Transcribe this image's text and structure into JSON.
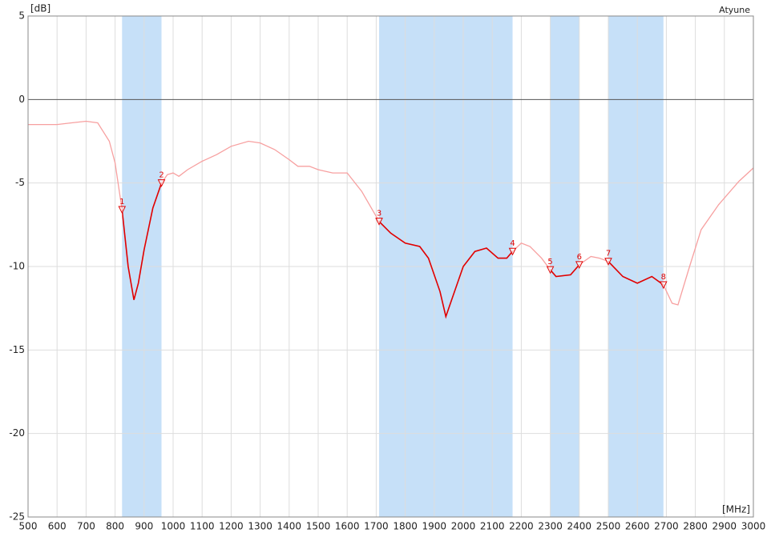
{
  "chart_data": {
    "type": "line",
    "y_unit": "[dB]",
    "x_unit": "[MHz]",
    "name_label": "Atyune",
    "xlim": [
      500,
      3000
    ],
    "ylim": [
      -25,
      5
    ],
    "xticks": [
      500,
      600,
      700,
      800,
      900,
      1000,
      1100,
      1200,
      1300,
      1400,
      1500,
      1600,
      1700,
      1800,
      1900,
      2000,
      2100,
      2200,
      2300,
      2400,
      2500,
      2600,
      2700,
      2800,
      2900,
      3000
    ],
    "yticks": [
      5,
      0,
      -5,
      -10,
      -15,
      -20,
      -25
    ],
    "grid": true,
    "band_color": "#c6e0f8",
    "bands": [
      [
        824,
        960
      ],
      [
        1710,
        2170
      ],
      [
        2300,
        2400
      ],
      [
        2500,
        2690
      ]
    ],
    "series": [
      {
        "color": "#e00000",
        "outside_color": "#f7a0a0",
        "x": [
          500,
          600,
          650,
          700,
          740,
          780,
          800,
          824,
          845,
          865,
          880,
          900,
          930,
          960,
          980,
          1000,
          1020,
          1050,
          1100,
          1150,
          1200,
          1260,
          1300,
          1350,
          1400,
          1430,
          1470,
          1500,
          1550,
          1600,
          1650,
          1700,
          1710,
          1750,
          1800,
          1850,
          1880,
          1920,
          1940,
          1960,
          2000,
          2040,
          2080,
          2120,
          2150,
          2170,
          2200,
          2230,
          2270,
          2300,
          2320,
          2370,
          2400,
          2440,
          2470,
          2500,
          2550,
          2600,
          2650,
          2690,
          2720,
          2740,
          2780,
          2820,
          2880,
          2950,
          3000
        ],
        "values": [
          -1.5,
          -1.5,
          -1.4,
          -1.3,
          -1.4,
          -2.5,
          -3.8,
          -6.6,
          -10,
          -12.0,
          -11,
          -9,
          -6.5,
          -5,
          -4.5,
          -4.4,
          -4.6,
          -4.2,
          -3.7,
          -3.3,
          -2.8,
          -2.5,
          -2.6,
          -3.0,
          -3.6,
          -4.0,
          -4.0,
          -4.2,
          -4.4,
          -4.4,
          -5.5,
          -7.0,
          -7.3,
          -8.0,
          -8.6,
          -8.8,
          -9.5,
          -11.5,
          -13.0,
          -12,
          -10,
          -9.1,
          -8.9,
          -9.5,
          -9.5,
          -9.1,
          -8.6,
          -8.8,
          -9.5,
          -10.2,
          -10.6,
          -10.5,
          -9.9,
          -9.4,
          -9.5,
          -9.7,
          -10.6,
          -11.0,
          -10.6,
          -11.1,
          -12.2,
          -12.3,
          -10,
          -7.8,
          -6.3,
          -4.9,
          -4.1
        ]
      }
    ],
    "markers": {
      "color": "#e00000",
      "labels": [
        "1",
        "2",
        "3",
        "4",
        "5",
        "6",
        "7",
        "8"
      ],
      "x": [
        824,
        960,
        1710,
        2170,
        2300,
        2400,
        2500,
        2690
      ],
      "values": [
        -6.6,
        -5,
        -7.3,
        -9.1,
        -10.2,
        -9.9,
        -9.7,
        -11.1
      ]
    }
  }
}
